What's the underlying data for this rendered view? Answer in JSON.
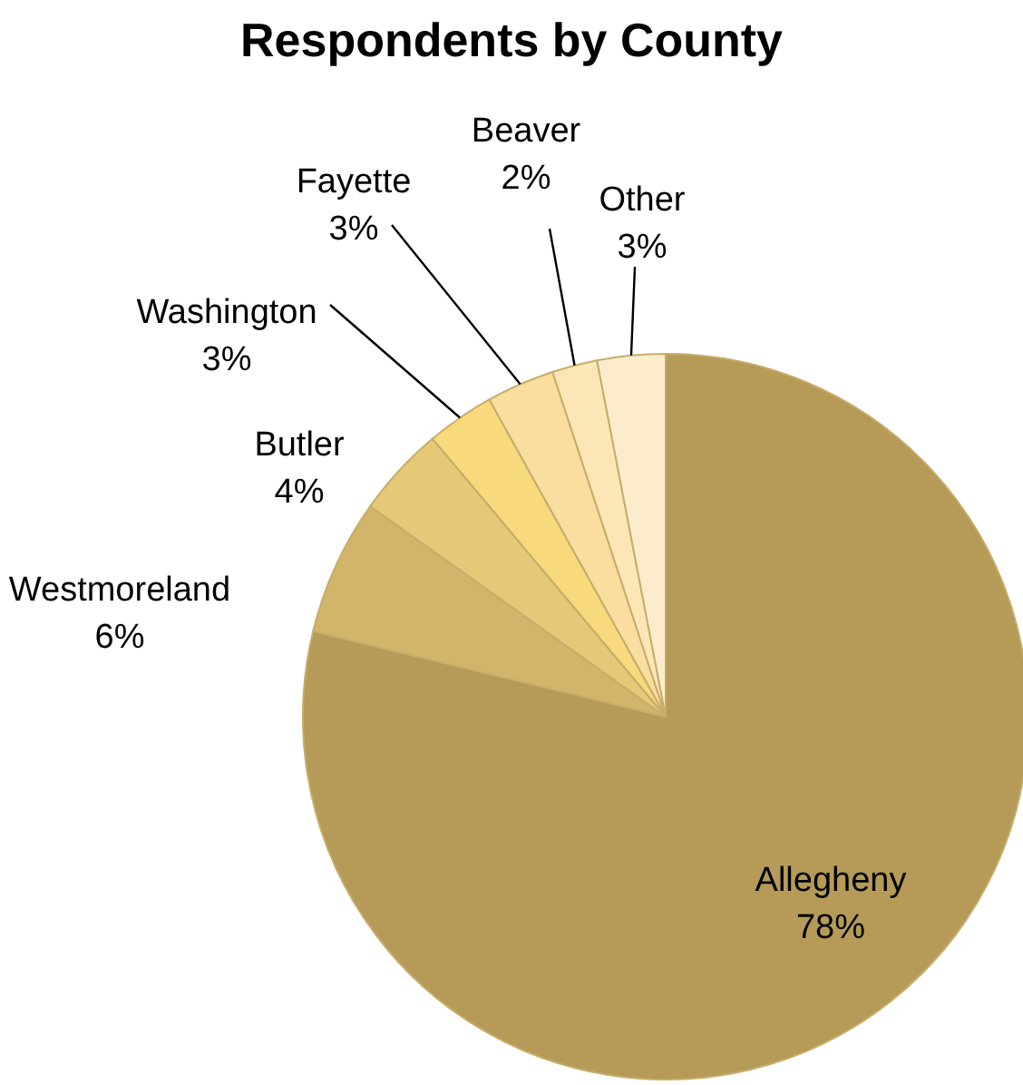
{
  "chart_data": {
    "type": "pie",
    "title": "Respondents by County",
    "categories": [
      "Allegheny",
      "Westmoreland",
      "Butler",
      "Washington",
      "Fayette",
      "Beaver",
      "Other"
    ],
    "values": [
      78,
      6,
      4,
      3,
      3,
      2,
      3
    ],
    "value_labels": [
      "78%",
      "6%",
      "4%",
      "3%",
      "3%",
      "2%",
      "3%"
    ],
    "colors": [
      "#b59b57",
      "#d2b46a",
      "#e5c878",
      "#f8d97b",
      "#f9dea0",
      "#fce6b6",
      "#fdeccb"
    ]
  }
}
